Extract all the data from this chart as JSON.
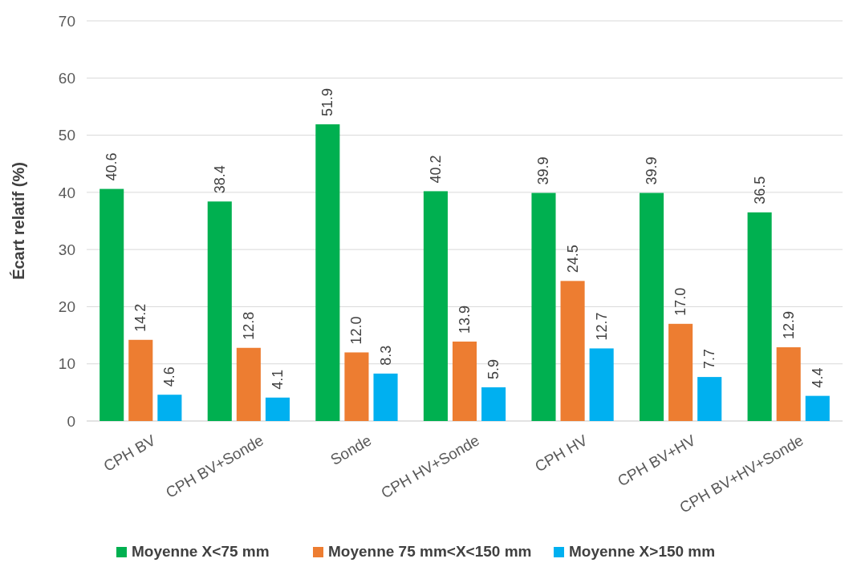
{
  "chart_data": {
    "type": "bar",
    "ylabel": "Écart relatif (%)",
    "categories": [
      "CPH BV",
      "CPH BV+Sonde",
      "Sonde",
      "CPH HV+Sonde",
      "CPH HV",
      "CPH BV+HV",
      "CPH BV+HV+Sonde"
    ],
    "series": [
      {
        "name": "Moyenne X<75 mm",
        "color": "#00b050",
        "values": [
          40.6,
          38.4,
          51.9,
          40.2,
          39.9,
          39.9,
          36.5
        ],
        "value_labels": [
          "40.6",
          "38.4",
          "51.9",
          "40.2",
          "39.9",
          "39.9",
          "36.5"
        ]
      },
      {
        "name": "Moyenne 75 mm<X<150 mm",
        "color": "#ed7d31",
        "values": [
          14.2,
          12.8,
          12.0,
          13.9,
          24.5,
          17.0,
          12.9
        ],
        "value_labels": [
          "14.2",
          "12.8",
          "12.0",
          "13.9",
          "24.5",
          "17.0",
          "12.9"
        ]
      },
      {
        "name": "Moyenne X>150 mm",
        "color": "#00b0f0",
        "values": [
          4.6,
          4.1,
          8.3,
          5.9,
          12.7,
          7.7,
          4.4
        ],
        "value_labels": [
          "4.6",
          "4.1",
          "8.3",
          "5.9",
          "12.7",
          "7.7",
          "4.4"
        ]
      }
    ],
    "ylim": [
      0,
      70
    ],
    "yticks": [
      0,
      10,
      20,
      30,
      40,
      50,
      60,
      70
    ],
    "grid": "y",
    "legend": "bottom"
  }
}
